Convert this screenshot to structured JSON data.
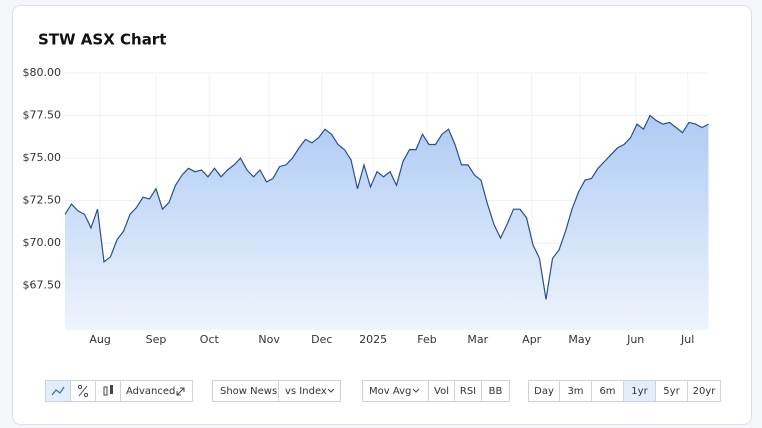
{
  "chart_data": {
    "type": "area",
    "title": "STW ASX Chart",
    "values": [
      71.7,
      72.3,
      71.9,
      71.7,
      70.9,
      72.0,
      68.9,
      69.2,
      70.2,
      70.7,
      71.7,
      72.1,
      72.7,
      72.6,
      73.2,
      72.0,
      72.4,
      73.4,
      74.0,
      74.4,
      74.2,
      74.3,
      73.9,
      74.4,
      73.9,
      74.3,
      74.6,
      75.0,
      74.3,
      73.9,
      74.3,
      73.6,
      73.8,
      74.5,
      74.6,
      75.0,
      75.6,
      76.1,
      75.9,
      76.2,
      76.7,
      76.4,
      75.8,
      75.5,
      74.9,
      73.2,
      74.6,
      73.3,
      74.2,
      73.9,
      74.2,
      73.4,
      74.8,
      75.5,
      75.5,
      76.4,
      75.8,
      75.8,
      76.4,
      76.7,
      75.8,
      74.6,
      74.6,
      74.0,
      73.7,
      72.3,
      71.1,
      70.3,
      71.1,
      72.0,
      72.0,
      71.5,
      69.9,
      69.1,
      66.7,
      69.1,
      69.6,
      70.7,
      72.0,
      73.0,
      73.7,
      73.8,
      74.4,
      74.8,
      75.2,
      75.6,
      75.8,
      76.2,
      77.0,
      76.7,
      77.5,
      77.2,
      77.0,
      77.1,
      76.8,
      76.5,
      77.1,
      77.0,
      76.8,
      77.0
    ],
    "color": "#2c4f8c",
    "xlim": [
      0,
      99
    ],
    "xticks": [
      {
        "value": 5.4,
        "label": "Aug"
      },
      {
        "value": 14,
        "label": "Sep"
      },
      {
        "value": 22.2,
        "label": "Oct"
      },
      {
        "value": 31.4,
        "label": "Nov"
      },
      {
        "value": 39.5,
        "label": "Dec"
      },
      {
        "value": 47.4,
        "label": "2025"
      },
      {
        "value": 55.7,
        "label": "Feb"
      },
      {
        "value": 63.5,
        "label": "Mar"
      },
      {
        "value": 71.8,
        "label": "Apr"
      },
      {
        "value": 79.2,
        "label": "May"
      },
      {
        "value": 87.8,
        "label": "Jun"
      },
      {
        "value": 95.8,
        "label": "Jul"
      }
    ],
    "ylim": [
      64.9,
      80
    ],
    "yticks": [
      {
        "value": 67.5,
        "label": "$67.50"
      },
      {
        "value": 70,
        "label": "$70.00"
      },
      {
        "value": 72.5,
        "label": "$72.50"
      },
      {
        "value": 75,
        "label": "$75.00"
      },
      {
        "value": 77.5,
        "label": "$77.50"
      },
      {
        "value": 80,
        "label": "$80.00"
      }
    ],
    "grid": true
  },
  "toolbar": {
    "advanced": "Advanced",
    "show_news": "Show News",
    "vs_index": "vs Index",
    "mov_avg": "Mov Avg",
    "vol": "Vol",
    "rsi": "RSI",
    "bb": "BB",
    "ranges": [
      "Day",
      "3m",
      "6m",
      "1yr",
      "5yr",
      "20yr"
    ],
    "active_range": 3
  }
}
